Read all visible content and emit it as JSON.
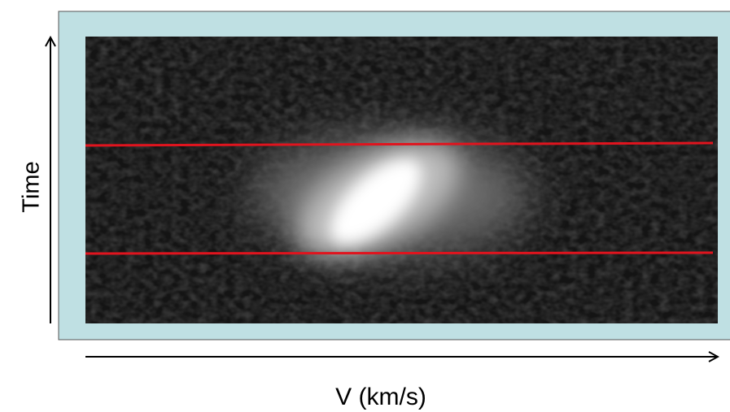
{
  "axes": {
    "y_label": "Time",
    "x_label": "V (km/s)"
  }
}
